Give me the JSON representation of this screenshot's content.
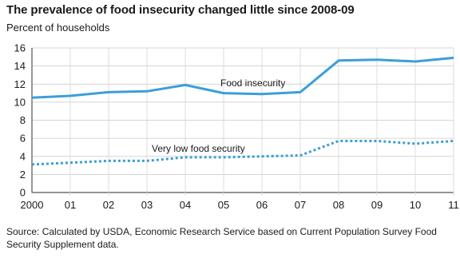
{
  "chart_data": {
    "type": "line",
    "title": "The prevalence of food insecurity changed little since 2008-09",
    "ylabel": "Percent of households",
    "xlabel": "",
    "categories": [
      "2000",
      "01",
      "02",
      "03",
      "04",
      "05",
      "06",
      "07",
      "08",
      "09",
      "10",
      "11"
    ],
    "ylim": [
      0,
      16
    ],
    "yticks": [
      0,
      2,
      4,
      6,
      8,
      10,
      12,
      14,
      16
    ],
    "grid": true,
    "series": [
      {
        "name": "Food insecurity",
        "values": [
          10.5,
          10.7,
          11.1,
          11.2,
          11.9,
          11.0,
          10.9,
          11.1,
          14.6,
          14.7,
          14.5,
          14.9
        ],
        "style": "solid",
        "color": "#3b9fd8"
      },
      {
        "name": "Very low food security",
        "values": [
          3.1,
          3.3,
          3.5,
          3.5,
          3.9,
          3.9,
          4.0,
          4.1,
          5.7,
          5.7,
          5.4,
          5.7
        ],
        "style": "dotted",
        "color": "#3b9fd8"
      }
    ],
    "source": "Source: Calculated by USDA, Economic Research Service based on Current Population Survey Food Security Supplement data."
  }
}
